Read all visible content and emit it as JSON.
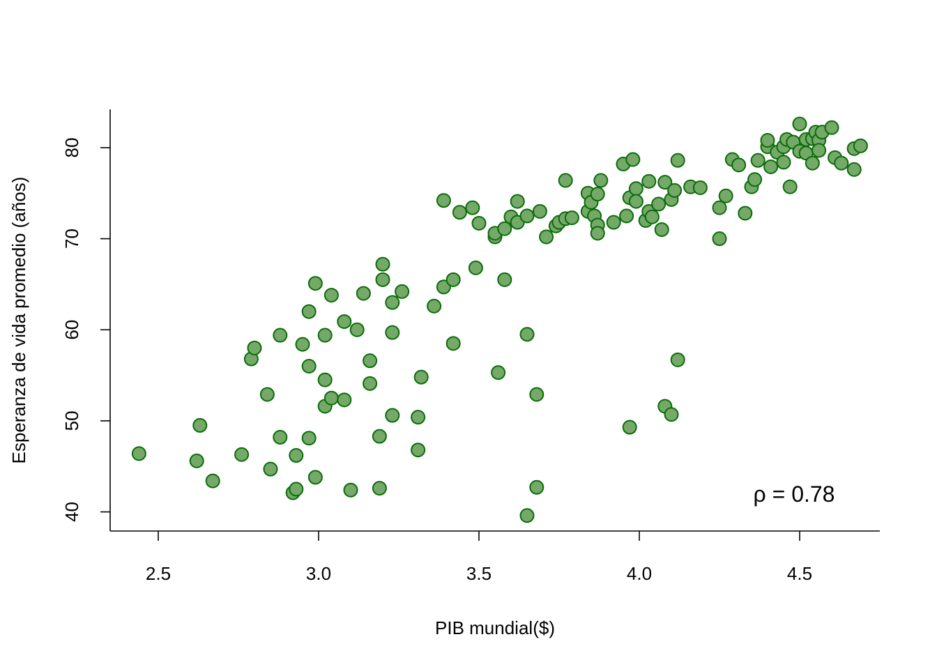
{
  "chart_data": {
    "type": "scatter",
    "title": "",
    "xlabel": "PIB mundial($)",
    "ylabel": "Esperanza de vida promedio (años)",
    "xlim": [
      2.35,
      4.75
    ],
    "ylim": [
      37.9,
      84.2
    ],
    "x_ticks": [
      2.5,
      3.0,
      3.5,
      4.0,
      4.5
    ],
    "x_tick_labels": [
      "2.5",
      "3.0",
      "3.5",
      "4.0",
      "4.5"
    ],
    "y_ticks": [
      40,
      50,
      60,
      70,
      80
    ],
    "y_tick_labels": [
      "40",
      "50",
      "60",
      "70",
      "80"
    ],
    "annotation": "ρ = 0.78",
    "grid": false,
    "colors": {
      "fill": "#74a968",
      "stroke": "#0a6b0a"
    },
    "points": [
      [
        2.44,
        46.4
      ],
      [
        2.62,
        45.6
      ],
      [
        2.63,
        49.5
      ],
      [
        2.67,
        43.4
      ],
      [
        2.76,
        46.3
      ],
      [
        2.79,
        56.8
      ],
      [
        2.8,
        58.0
      ],
      [
        2.84,
        52.9
      ],
      [
        2.85,
        44.7
      ],
      [
        2.88,
        48.2
      ],
      [
        2.88,
        59.4
      ],
      [
        2.92,
        42.1
      ],
      [
        2.93,
        42.5
      ],
      [
        2.93,
        46.2
      ],
      [
        2.95,
        58.4
      ],
      [
        2.97,
        48.1
      ],
      [
        2.97,
        56.0
      ],
      [
        2.97,
        62.0
      ],
      [
        2.99,
        43.8
      ],
      [
        2.99,
        65.1
      ],
      [
        3.02,
        54.5
      ],
      [
        3.02,
        59.4
      ],
      [
        3.02,
        51.6
      ],
      [
        3.04,
        52.5
      ],
      [
        3.04,
        63.8
      ],
      [
        3.08,
        60.9
      ],
      [
        3.08,
        52.3
      ],
      [
        3.1,
        42.4
      ],
      [
        3.12,
        60.0
      ],
      [
        3.14,
        64.0
      ],
      [
        3.16,
        56.6
      ],
      [
        3.16,
        54.1
      ],
      [
        3.19,
        48.3
      ],
      [
        3.19,
        42.6
      ],
      [
        3.2,
        67.2
      ],
      [
        3.2,
        65.5
      ],
      [
        3.23,
        63.0
      ],
      [
        3.23,
        50.6
      ],
      [
        3.23,
        59.7
      ],
      [
        3.26,
        64.2
      ],
      [
        3.31,
        46.8
      ],
      [
        3.31,
        50.4
      ],
      [
        3.32,
        54.8
      ],
      [
        3.36,
        62.6
      ],
      [
        3.39,
        74.2
      ],
      [
        3.39,
        64.7
      ],
      [
        3.42,
        65.5
      ],
      [
        3.42,
        58.5
      ],
      [
        3.44,
        72.9
      ],
      [
        3.48,
        73.4
      ],
      [
        3.49,
        66.8
      ],
      [
        3.5,
        71.7
      ],
      [
        3.55,
        70.2
      ],
      [
        3.55,
        70.6
      ],
      [
        3.56,
        55.3
      ],
      [
        3.58,
        65.5
      ],
      [
        3.58,
        71.1
      ],
      [
        3.6,
        72.4
      ],
      [
        3.62,
        74.1
      ],
      [
        3.62,
        71.8
      ],
      [
        3.65,
        59.5
      ],
      [
        3.65,
        39.6
      ],
      [
        3.65,
        72.5
      ],
      [
        3.68,
        42.7
      ],
      [
        3.68,
        52.9
      ],
      [
        3.69,
        73.0
      ],
      [
        3.71,
        70.2
      ],
      [
        3.74,
        71.4
      ],
      [
        3.75,
        71.8
      ],
      [
        3.77,
        76.4
      ],
      [
        3.77,
        72.2
      ],
      [
        3.79,
        72.3
      ],
      [
        3.84,
        75.0
      ],
      [
        3.84,
        73.0
      ],
      [
        3.85,
        74.0
      ],
      [
        3.86,
        72.5
      ],
      [
        3.87,
        71.5
      ],
      [
        3.87,
        70.6
      ],
      [
        3.87,
        74.9
      ],
      [
        3.88,
        76.4
      ],
      [
        3.92,
        71.8
      ],
      [
        3.95,
        78.2
      ],
      [
        3.96,
        72.5
      ],
      [
        3.97,
        49.3
      ],
      [
        3.97,
        74.5
      ],
      [
        3.98,
        78.7
      ],
      [
        3.99,
        75.5
      ],
      [
        3.99,
        74.1
      ],
      [
        4.02,
        72.0
      ],
      [
        4.03,
        76.3
      ],
      [
        4.03,
        73.0
      ],
      [
        4.04,
        72.4
      ],
      [
        4.06,
        73.8
      ],
      [
        4.07,
        71.0
      ],
      [
        4.08,
        76.2
      ],
      [
        4.08,
        51.6
      ],
      [
        4.1,
        74.3
      ],
      [
        4.1,
        50.7
      ],
      [
        4.11,
        75.3
      ],
      [
        4.12,
        78.6
      ],
      [
        4.12,
        56.7
      ],
      [
        4.16,
        75.7
      ],
      [
        4.19,
        75.6
      ],
      [
        4.25,
        73.4
      ],
      [
        4.25,
        70.0
      ],
      [
        4.27,
        74.7
      ],
      [
        4.29,
        78.7
      ],
      [
        4.31,
        78.1
      ],
      [
        4.33,
        72.8
      ],
      [
        4.35,
        75.7
      ],
      [
        4.36,
        76.5
      ],
      [
        4.37,
        78.6
      ],
      [
        4.4,
        80.1
      ],
      [
        4.4,
        80.8
      ],
      [
        4.41,
        77.9
      ],
      [
        4.43,
        79.5
      ],
      [
        4.45,
        80.1
      ],
      [
        4.45,
        78.4
      ],
      [
        4.46,
        80.9
      ],
      [
        4.47,
        75.7
      ],
      [
        4.48,
        80.6
      ],
      [
        4.5,
        82.6
      ],
      [
        4.5,
        79.6
      ],
      [
        4.52,
        79.4
      ],
      [
        4.52,
        80.9
      ],
      [
        4.54,
        81.0
      ],
      [
        4.54,
        78.3
      ],
      [
        4.55,
        81.7
      ],
      [
        4.56,
        80.8
      ],
      [
        4.56,
        79.7
      ],
      [
        4.57,
        81.7
      ],
      [
        4.6,
        82.2
      ],
      [
        4.61,
        78.9
      ],
      [
        4.63,
        78.3
      ],
      [
        4.67,
        79.9
      ],
      [
        4.67,
        77.6
      ],
      [
        4.69,
        80.2
      ]
    ]
  }
}
